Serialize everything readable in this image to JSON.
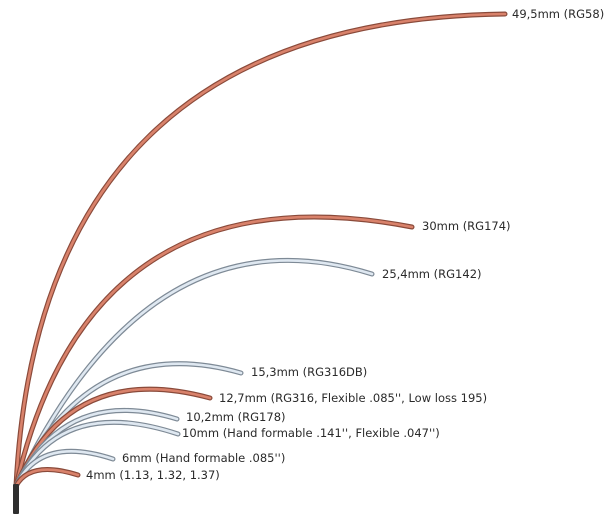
{
  "colors": {
    "copper": "#d9826b",
    "copper_edge": "#8a4a3a",
    "silver": "#dfe8f1",
    "silver_edge": "#7e8a96",
    "connector": "#2f2f2f",
    "text": "#2a2a2a"
  },
  "cables": [
    {
      "id": "rg58",
      "label": "49,5mm (RG58)",
      "radius_mm": 49.5,
      "material": "copper"
    },
    {
      "id": "rg174",
      "label": "30mm (RG174)",
      "radius_mm": 30,
      "material": "copper"
    },
    {
      "id": "rg142",
      "label": "25,4mm (RG142)",
      "radius_mm": 25.4,
      "material": "silver"
    },
    {
      "id": "rg316db",
      "label": "15,3mm (RG316DB)",
      "radius_mm": 15.3,
      "material": "silver"
    },
    {
      "id": "rg316",
      "label": "12,7mm (RG316, Flexible .085'', Low loss 195)",
      "radius_mm": 12.7,
      "material": "copper"
    },
    {
      "id": "rg178",
      "label": "10,2mm (RG178)",
      "radius_mm": 10.2,
      "material": "silver"
    },
    {
      "id": "hf141",
      "label": "10mm (Hand formable .141'', Flexible .047'')",
      "radius_mm": 10,
      "material": "silver"
    },
    {
      "id": "hf085",
      "label": "6mm (Hand formable .085'')",
      "radius_mm": 6,
      "material": "silver"
    },
    {
      "id": "small",
      "label": "4mm (1.13, 1.32, 1.37)",
      "radius_mm": 4,
      "material": "copper"
    }
  ]
}
